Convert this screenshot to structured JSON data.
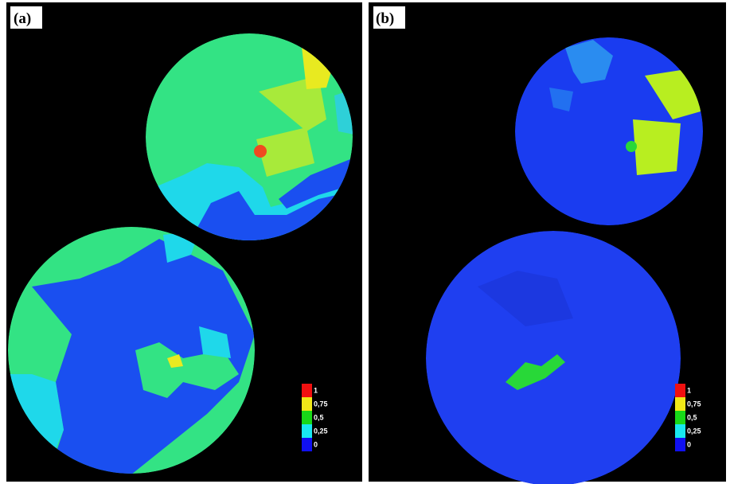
{
  "panels": [
    {
      "label": "(a)"
    },
    {
      "label": "(b)"
    }
  ],
  "legend": {
    "labels": [
      "1",
      "0,75",
      "0,5",
      "0,25",
      "0"
    ]
  }
}
